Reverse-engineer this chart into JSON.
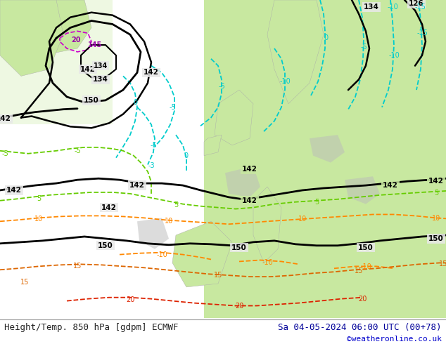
{
  "title_left": "Height/Temp. 850 hPa [gdpm] ECMWF",
  "title_right": "Sa 04-05-2024 06:00 UTC (00+78)",
  "credit": "©weatheronline.co.uk",
  "fig_width": 6.34,
  "fig_height": 4.9,
  "dpi": 100,
  "bg_ocean": "#e8e8e8",
  "bg_land": "#c8e8a0",
  "text_color_left": "#222222",
  "text_color_right": "#000099",
  "credit_color": "#0000cc",
  "font_size_title": 9,
  "font_size_credit": 8,
  "geo_color": "#000000",
  "temp_cyan_color": "#00cccc",
  "temp_blue_color": "#0077cc",
  "temp_green_color": "#66cc00",
  "temp_orange_color": "#ff8800",
  "temp_red_color": "#dd2200",
  "temp_purple_color": "#aa00aa"
}
